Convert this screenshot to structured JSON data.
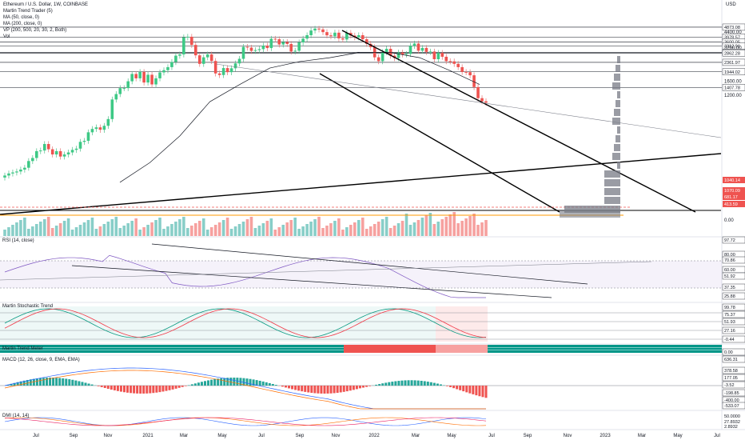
{
  "header": {
    "symbol_line": "Ethereum / U.S. Dollar, 1W, COINBASE",
    "indicators": [
      "Martin Trend Trader (5)",
      "MA (50, close, 0)",
      "MA (200, close, 0)",
      "VP (200, 500, 20, 30, 2, Both)",
      "Vol"
    ],
    "currency": "USD"
  },
  "panes": {
    "rsi": "RSI (14, close)",
    "stoch": "Martin Stochastic Trend",
    "trend_meter": "Martin Trend Meter",
    "macd": "MACD (12, 26, close, 9, EMA, EMA)",
    "dmi": "DMI (14, 14)"
  },
  "colors": {
    "up": "#26a69a",
    "down": "#ef5350",
    "up_light": "#66d69e",
    "down_light": "#f7a1a0",
    "ma50": "#131722",
    "ma200": "#2962ff",
    "rsi": "#7e57c2",
    "stoch_k": "#089981",
    "stoch_d": "#f23645",
    "macd": "#2962ff",
    "signal": "#ff6d00"
  },
  "price_levels": [
    "4873.08",
    "3978.57",
    "3600.05",
    "3312.91",
    "2906.09",
    "2862.28",
    "2361.97",
    "1944.02",
    "1407.78"
  ],
  "price_ticks": [
    "4400.00",
    "3200.00",
    "1600.00",
    "1200.00",
    "0.00"
  ],
  "price_tags": [
    {
      "text": "1040.14",
      "bg": "#ef5350"
    },
    {
      "text": "1070.09",
      "bg": "#ef5350"
    },
    {
      "text": "681.17",
      "bg": "#ef5350"
    },
    {
      "text": "413.59",
      "bg": "#ef5350"
    }
  ],
  "rsi_ticks": [
    "97.72",
    "80.00",
    "70.86",
    "60.00",
    "51.92",
    "37.35",
    "25.88"
  ],
  "stoch_ticks": [
    "99.78",
    "75.37",
    "51.93",
    "27.16",
    "-0.44",
    "0.00"
  ],
  "macd_ticks": [
    "636.31",
    "378.58",
    "177.05",
    "-3.52",
    "-198.85",
    "-400.00",
    "-533.07"
  ],
  "dmi_ticks": [
    "50.0000",
    "27.8932",
    "2.8932"
  ],
  "x_labels": [
    "Jul",
    "Sep",
    "Nov",
    "2021",
    "Mar",
    "May",
    "Jul",
    "Sep",
    "Nov",
    "2022",
    "Mar",
    "May",
    "Jul",
    "Sep",
    "Nov",
    "2023",
    "Mar",
    "May",
    "Jul"
  ],
  "chart_data": {
    "type": "candlestick",
    "title": "Ethereum / U.S. Dollar, 1W, COINBASE",
    "y_scale": "log",
    "ylim": [
      100,
      5200
    ],
    "candle_close": [
      230,
      240,
      245,
      250,
      260,
      270,
      310,
      330,
      380,
      385,
      440,
      395,
      355,
      380,
      340,
      355,
      370,
      390,
      400,
      460,
      470,
      560,
      600,
      620,
      590,
      640,
      735,
      1100,
      1230,
      1390,
      1390,
      1600,
      1860,
      1700,
      1940,
      1560,
      1830,
      1500,
      1700,
      1920,
      2010,
      2140,
      2380,
      2710,
      2780,
      3950,
      4000,
      3380,
      2730,
      2290,
      2620,
      2780,
      2430,
      1880,
      1820,
      2100,
      1930,
      2090,
      2310,
      2540,
      3250,
      3200,
      2990,
      3040,
      3100,
      3330,
      3170,
      3840,
      3800,
      3410,
      3590,
      3450,
      2950,
      3000,
      3560,
      3850,
      4130,
      4550,
      4730,
      4650,
      4400,
      4120,
      4040,
      4350,
      3870,
      3780,
      4330,
      4100,
      3950,
      4130,
      3800,
      3460,
      3230,
      2620,
      2420,
      2920,
      3120,
      2710,
      2580,
      2890,
      2780,
      2810,
      3320,
      3480,
      3000,
      3180,
      2930,
      2950,
      2520,
      2870,
      2650,
      2420,
      2410,
      2290,
      2140,
      1940,
      1930,
      1810,
      1420,
      1130,
      1060,
      1030
    ],
    "ma50_approx": [
      200,
      300,
      520,
      1050,
      1500,
      2100,
      2400,
      2600,
      2900,
      2900,
      2600,
      2000,
      1500
    ],
    "volume_scale": "relative",
    "annotations": [
      "descending channel",
      "long-term trendline",
      "volume profile"
    ]
  }
}
